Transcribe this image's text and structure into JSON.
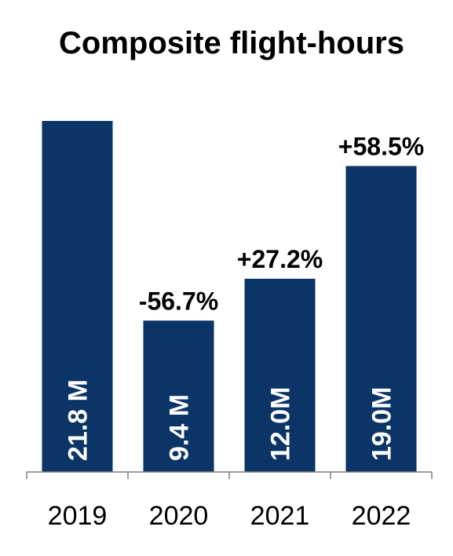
{
  "chart_data": {
    "type": "bar",
    "title": "Composite flight-hours",
    "categories": [
      "2019",
      "2020",
      "2021",
      "2022"
    ],
    "values": [
      21.8,
      9.4,
      12.0,
      19.0
    ],
    "value_labels": [
      "21.8 M",
      "9.4 M",
      "12.0M",
      "19.0M"
    ],
    "change_labels": [
      "",
      "-56.7%",
      "+27.2%",
      "+58.5%"
    ],
    "unit": "M",
    "xlabel": "",
    "ylabel": "",
    "ylim": [
      0,
      21.8
    ],
    "grid": false,
    "legend": "none",
    "bar_color": "#0B3467",
    "axis_color": "#7F7F7F"
  }
}
